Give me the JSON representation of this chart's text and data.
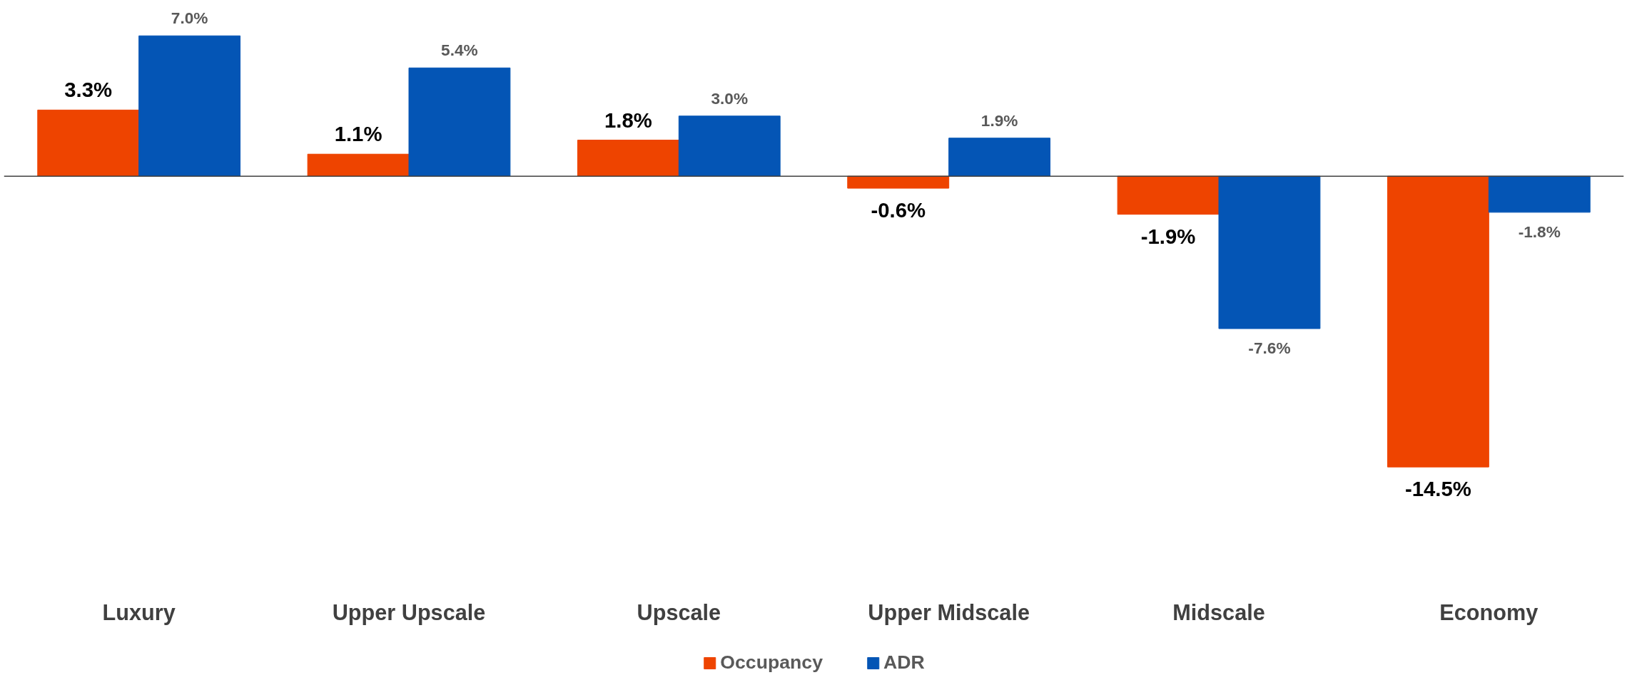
{
  "chart_data": {
    "type": "bar",
    "categories": [
      "Luxury",
      "Upper Upscale",
      "Upscale",
      "Upper Midscale",
      "Midscale",
      "Economy"
    ],
    "series": [
      {
        "name": "Occupancy",
        "color": "#ee4400",
        "values": [
          3.3,
          1.1,
          1.8,
          -0.6,
          -1.9,
          -14.5
        ],
        "value_labels": [
          "3.3%",
          "1.1%",
          "1.8%",
          "-0.6%",
          "-1.9%",
          "-14.5%"
        ]
      },
      {
        "name": "ADR",
        "color": "#0455b5",
        "values": [
          7.0,
          5.4,
          3.0,
          1.9,
          -7.6,
          -1.8
        ],
        "value_labels": [
          "7.0%",
          "5.4%",
          "3.0%",
          "1.9%",
          "-7.6%",
          "-1.8%"
        ]
      }
    ],
    "legend": "bottom",
    "grid": false
  }
}
